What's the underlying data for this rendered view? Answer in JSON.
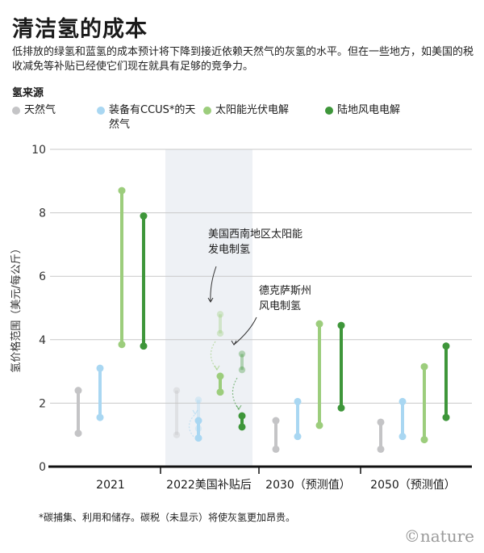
{
  "header": {
    "title": "清洁氢的成本",
    "subtitle": "低排放的绿氢和蓝氢的成本预计将下降到接近依赖天然气的灰氢的水平。但在一些地方，如美国的税收减免等补贴已经使它们现在就具有足够的竞争力。",
    "source_label": "氢来源"
  },
  "legend": [
    {
      "label": "天然气",
      "color": "#c4c4c6"
    },
    {
      "label": "装备有CCUS*的天然气",
      "color": "#a9d7f2"
    },
    {
      "label": "太阳能光伏电解",
      "color": "#9ccd7c"
    },
    {
      "label": "陆地风电电解",
      "color": "#3e963a"
    }
  ],
  "chart_data": {
    "type": "range",
    "ylabel": "氢价格范围（美元/每公斤）",
    "ylim": [
      0,
      10
    ],
    "yticks": [
      0,
      2,
      4,
      6,
      8,
      10
    ],
    "categories": [
      "2021",
      "2022美国补贴后",
      "2030（预测值）",
      "2050（预测值）"
    ],
    "highlight_category": "2022美国补贴后",
    "series": [
      {
        "name": "天然气",
        "color": "#c4c4c6",
        "ranges": [
          [
            1.05,
            2.4
          ],
          null,
          [
            0.55,
            1.45
          ],
          [
            0.55,
            1.4
          ]
        ]
      },
      {
        "name": "装备有CCUS*的天然气",
        "color": "#a9d7f2",
        "ranges": [
          [
            1.55,
            3.1
          ],
          [
            0.9,
            1.45
          ],
          [
            0.95,
            2.05
          ],
          [
            0.95,
            2.05
          ]
        ]
      },
      {
        "name": "太阳能光伏电解",
        "color": "#9ccd7c",
        "ranges": [
          [
            3.85,
            8.7
          ],
          [
            2.35,
            2.85
          ],
          [
            1.3,
            4.5
          ],
          [
            0.85,
            3.15
          ]
        ]
      },
      {
        "name": "陆地风电电解",
        "color": "#3e963a",
        "ranges": [
          [
            3.8,
            7.9
          ],
          [
            1.25,
            1.6
          ],
          [
            1.85,
            4.45
          ],
          [
            1.55,
            3.8
          ]
        ]
      }
    ],
    "ghost_ranges": [
      {
        "series": "天然气",
        "range": [
          1.0,
          2.4
        ]
      },
      {
        "series": "装备有CCUS*的天然气",
        "range": [
          1.2,
          2.1
        ]
      },
      {
        "series": "太阳能光伏电解",
        "range": [
          4.2,
          4.8
        ]
      },
      {
        "series": "陆地风电电解",
        "range": [
          3.05,
          3.55
        ]
      }
    ],
    "annotations": [
      {
        "text_lines": [
          "美国西南地区太阳能",
          "发电制氢"
        ],
        "series": "太阳能光伏电解"
      },
      {
        "text_lines": [
          "德克萨斯州",
          "风电制氢"
        ],
        "series": "陆地风电电解"
      }
    ]
  },
  "footnote": "*碳捕集、利用和储存。碳税（未显示）将使灰氢更加昂贵。",
  "brand": "©nature"
}
